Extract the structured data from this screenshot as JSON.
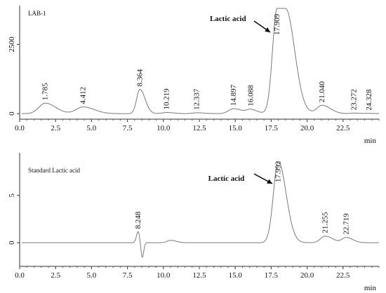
{
  "chart_data": [
    {
      "type": "line",
      "panel_label": "LAB-1",
      "xlabel": "min",
      "ylabel": "",
      "xlim": [
        0,
        25
      ],
      "ylim": [
        -200,
        3900
      ],
      "xticks": [
        "0.0",
        "2.5",
        "5.0",
        "7.5",
        "10.0",
        "12.5",
        "15.0",
        "17.5",
        "20.0",
        "22.5"
      ],
      "yticks": [
        {
          "value": 0,
          "label": "0"
        },
        {
          "value": 2500,
          "label": "2500"
        }
      ],
      "grid": false,
      "peaks": [
        {
          "rt": 1.785,
          "label": "1.785",
          "height": 380,
          "width": 0.55
        },
        {
          "rt": 4.412,
          "label": "4.412",
          "height": 240,
          "width": 0.6
        },
        {
          "rt": 8.364,
          "label": "8.364",
          "height": 880,
          "width": 0.28
        },
        {
          "rt": 10.219,
          "label": "10.219",
          "height": 40,
          "width": 0.4
        },
        {
          "rt": 12.337,
          "label": "12.337",
          "height": 30,
          "width": 0.4
        },
        {
          "rt": 14.897,
          "label": "14.897",
          "height": 180,
          "width": 0.45
        },
        {
          "rt": 16.088,
          "label": "16.088",
          "height": 140,
          "width": 0.35
        },
        {
          "rt": 17.909,
          "label": "17.909",
          "height": 3800,
          "width": 0.45,
          "flat_to": 18.5
        },
        {
          "rt": 21.04,
          "label": "21.040",
          "height": 300,
          "width": 0.45
        },
        {
          "rt": 23.272,
          "label": "23.272",
          "height": 20,
          "width": 0.3
        },
        {
          "rt": 24.328,
          "label": "24.328",
          "height": 10,
          "width": 0.3
        }
      ],
      "annotation": {
        "text": "Lactic acid",
        "points_to_rt": 17.909
      }
    },
    {
      "type": "line",
      "panel_label": "Standard Lactic acid",
      "xlabel": "min",
      "ylabel": "",
      "xlim": [
        0,
        25
      ],
      "ylim": [
        -2.5,
        9.5
      ],
      "xticks": [
        "0.0",
        "2.5",
        "5.0",
        "7.5",
        "10.0",
        "12.5",
        "15.0",
        "17.5",
        "20.0",
        "22.5"
      ],
      "yticks": [
        {
          "value": 0,
          "label": "0"
        },
        {
          "value": 5,
          "label": "5"
        }
      ],
      "grid": false,
      "peaks": [
        {
          "rt": 8.248,
          "label": "8.248",
          "height": 1.2,
          "width": 0.12,
          "dip": -1.6
        },
        {
          "rt": 10.5,
          "label": "",
          "height": 0.25,
          "width": 0.3
        },
        {
          "rt": 17.992,
          "label": "17.992",
          "height": 8.6,
          "width": 0.42
        },
        {
          "rt": 21.255,
          "label": "21.255",
          "height": 0.7,
          "width": 0.4
        },
        {
          "rt": 22.719,
          "label": "22.719",
          "height": 0.55,
          "width": 0.35
        }
      ],
      "annotation": {
        "text": "Lactic acid",
        "points_to_rt": 17.992
      }
    }
  ]
}
